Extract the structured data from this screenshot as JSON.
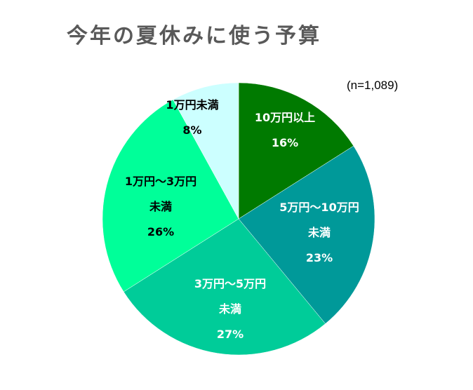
{
  "title": "今年の夏休みに使う予算",
  "sample_note": "(n=1,089)",
  "chart_data": {
    "type": "pie",
    "title": "今年の夏休みに使う予算",
    "annotation": "(n=1,089)",
    "categories": [
      "10万円以上",
      "5万円～10万円未満",
      "3万円～5万円未満",
      "1万円～3万円未満",
      "1万円未満"
    ],
    "values": [
      16,
      23,
      27,
      26,
      8
    ],
    "unit": "%",
    "colors": [
      "#007A00",
      "#009999",
      "#00CC99",
      "#00FF99",
      "#CCFFFF"
    ],
    "start_angle": "12 o'clock, clockwise",
    "legend": "none (data labels inside slices)"
  },
  "labels": [
    {
      "lines": [
        "10万円以上"
      ],
      "pct": "16%",
      "color": "#ffffff"
    },
    {
      "lines": [
        "5万円～10万円",
        "未満"
      ],
      "pct": "23%",
      "color": "#ffffff"
    },
    {
      "lines": [
        "3万円～5万円",
        "未満"
      ],
      "pct": "27%",
      "color": "#ffffff"
    },
    {
      "lines": [
        "1万円～3万円",
        "未満"
      ],
      "pct": "26%",
      "color": "#000000"
    },
    {
      "lines": [
        "1万円未満"
      ],
      "pct": "8%",
      "color": "#000000"
    }
  ]
}
